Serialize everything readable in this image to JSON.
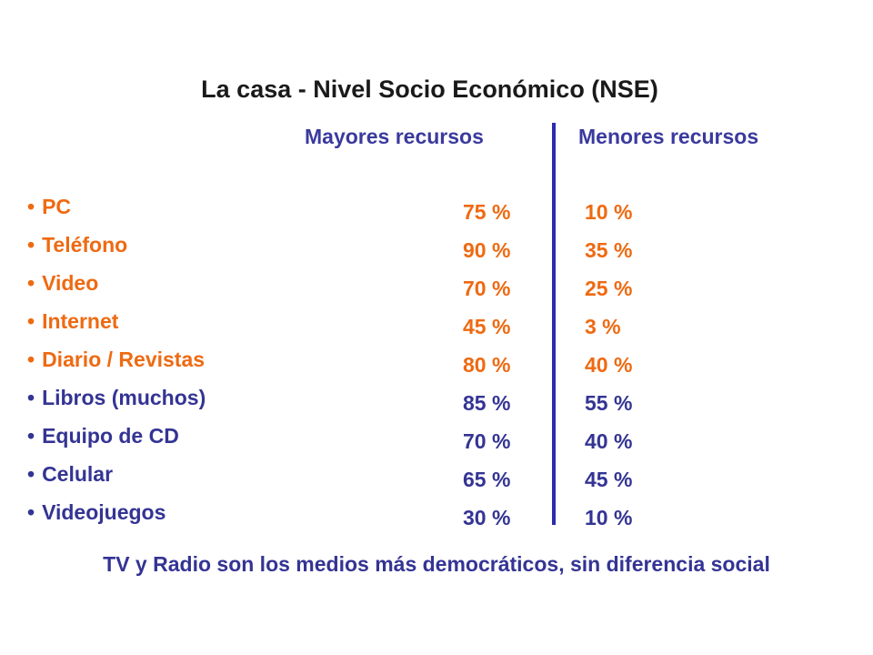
{
  "title": "La casa - Nivel Socio Económico (NSE)",
  "columns": {
    "mayores": "Mayores recursos",
    "menores": "Menores recursos"
  },
  "bullet": "•",
  "rows": [
    {
      "item": "PC",
      "mayores": "75 %",
      "menores": "10 %",
      "color": "orange"
    },
    {
      "item": "Teléfono",
      "mayores": "90 %",
      "menores": "35 %",
      "color": "orange"
    },
    {
      "item": "Video",
      "mayores": "70 %",
      "menores": "25 %",
      "color": "orange"
    },
    {
      "item": "Internet",
      "mayores": "45 %",
      "menores": "3 %",
      "color": "orange"
    },
    {
      "item": "Diario / Revistas",
      "mayores": "80 %",
      "menores": "40 %",
      "color": "orange"
    },
    {
      "item": "Libros (muchos)",
      "mayores": "85 %",
      "menores": "55 %",
      "color": "blue"
    },
    {
      "item": "Equipo de CD",
      "mayores": "70 %",
      "menores": "40 %",
      "color": "blue"
    },
    {
      "item": "Celular",
      "mayores": "65 %",
      "menores": "45 %",
      "color": "blue"
    },
    {
      "item": "Videojuegos",
      "mayores": "30 %",
      "menores": "10 %",
      "color": "blue"
    }
  ],
  "footer": "TV y Radio son los medios más democráticos, sin diferencia social",
  "colors": {
    "orange": "#ee6a12",
    "blue": "#343494",
    "divider": "#2b2bb0",
    "title": "#1a1a1a"
  }
}
